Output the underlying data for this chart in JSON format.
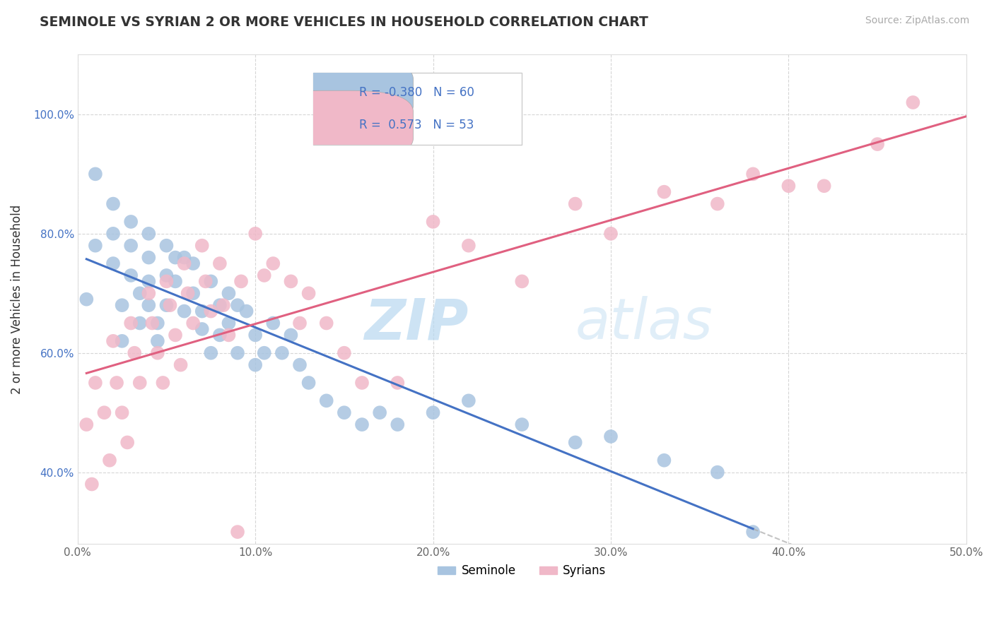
{
  "title": "SEMINOLE VS SYRIAN 2 OR MORE VEHICLES IN HOUSEHOLD CORRELATION CHART",
  "source": "Source: ZipAtlas.com",
  "ylabel": "2 or more Vehicles in Household",
  "xlim": [
    0.0,
    0.5
  ],
  "ylim": [
    0.28,
    1.1
  ],
  "xticks": [
    0.0,
    0.1,
    0.2,
    0.3,
    0.4,
    0.5
  ],
  "xtick_labels": [
    "0.0%",
    "10.0%",
    "20.0%",
    "30.0%",
    "40.0%",
    "50.0%"
  ],
  "yticks": [
    0.4,
    0.6,
    0.8,
    1.0
  ],
  "ytick_labels": [
    "40.0%",
    "60.0%",
    "80.0%",
    "100.0%"
  ],
  "seminole_color": "#a8c4e0",
  "syrian_color": "#f0b8c8",
  "seminole_line_color": "#4472c4",
  "syrian_line_color": "#e06080",
  "R_seminole": -0.38,
  "N_seminole": 60,
  "R_syrian": 0.573,
  "N_syrian": 53,
  "legend_labels": [
    "Seminole",
    "Syrians"
  ],
  "watermark_zip": "ZIP",
  "watermark_atlas": "atlas",
  "background_color": "#ffffff",
  "grid_color": "#cccccc",
  "seminole_x": [
    0.005,
    0.01,
    0.01,
    0.02,
    0.02,
    0.02,
    0.025,
    0.025,
    0.03,
    0.03,
    0.03,
    0.035,
    0.035,
    0.04,
    0.04,
    0.04,
    0.04,
    0.045,
    0.045,
    0.05,
    0.05,
    0.05,
    0.055,
    0.055,
    0.06,
    0.06,
    0.065,
    0.065,
    0.07,
    0.07,
    0.075,
    0.075,
    0.08,
    0.08,
    0.085,
    0.085,
    0.09,
    0.09,
    0.095,
    0.1,
    0.1,
    0.105,
    0.11,
    0.115,
    0.12,
    0.125,
    0.13,
    0.14,
    0.15,
    0.16,
    0.17,
    0.18,
    0.2,
    0.22,
    0.25,
    0.28,
    0.3,
    0.33,
    0.36,
    0.38
  ],
  "seminole_y": [
    0.69,
    0.9,
    0.78,
    0.85,
    0.8,
    0.75,
    0.68,
    0.62,
    0.82,
    0.78,
    0.73,
    0.7,
    0.65,
    0.8,
    0.76,
    0.72,
    0.68,
    0.65,
    0.62,
    0.78,
    0.73,
    0.68,
    0.76,
    0.72,
    0.76,
    0.67,
    0.75,
    0.7,
    0.67,
    0.64,
    0.6,
    0.72,
    0.68,
    0.63,
    0.7,
    0.65,
    0.68,
    0.6,
    0.67,
    0.63,
    0.58,
    0.6,
    0.65,
    0.6,
    0.63,
    0.58,
    0.55,
    0.52,
    0.5,
    0.48,
    0.5,
    0.48,
    0.5,
    0.52,
    0.48,
    0.45,
    0.46,
    0.42,
    0.4,
    0.3
  ],
  "syrian_x": [
    0.005,
    0.008,
    0.01,
    0.015,
    0.018,
    0.02,
    0.022,
    0.025,
    0.028,
    0.03,
    0.032,
    0.035,
    0.04,
    0.042,
    0.045,
    0.048,
    0.05,
    0.052,
    0.055,
    0.058,
    0.06,
    0.062,
    0.065,
    0.07,
    0.072,
    0.075,
    0.08,
    0.082,
    0.085,
    0.09,
    0.092,
    0.1,
    0.105,
    0.11,
    0.12,
    0.125,
    0.13,
    0.14,
    0.15,
    0.16,
    0.18,
    0.2,
    0.22,
    0.25,
    0.28,
    0.3,
    0.33,
    0.36,
    0.38,
    0.4,
    0.42,
    0.45,
    0.47
  ],
  "syrian_y": [
    0.48,
    0.38,
    0.55,
    0.5,
    0.42,
    0.62,
    0.55,
    0.5,
    0.45,
    0.65,
    0.6,
    0.55,
    0.7,
    0.65,
    0.6,
    0.55,
    0.72,
    0.68,
    0.63,
    0.58,
    0.75,
    0.7,
    0.65,
    0.78,
    0.72,
    0.67,
    0.75,
    0.68,
    0.63,
    0.3,
    0.72,
    0.8,
    0.73,
    0.75,
    0.72,
    0.65,
    0.7,
    0.65,
    0.6,
    0.55,
    0.55,
    0.82,
    0.78,
    0.72,
    0.85,
    0.8,
    0.87,
    0.85,
    0.9,
    0.88,
    0.88,
    0.95,
    1.02
  ]
}
